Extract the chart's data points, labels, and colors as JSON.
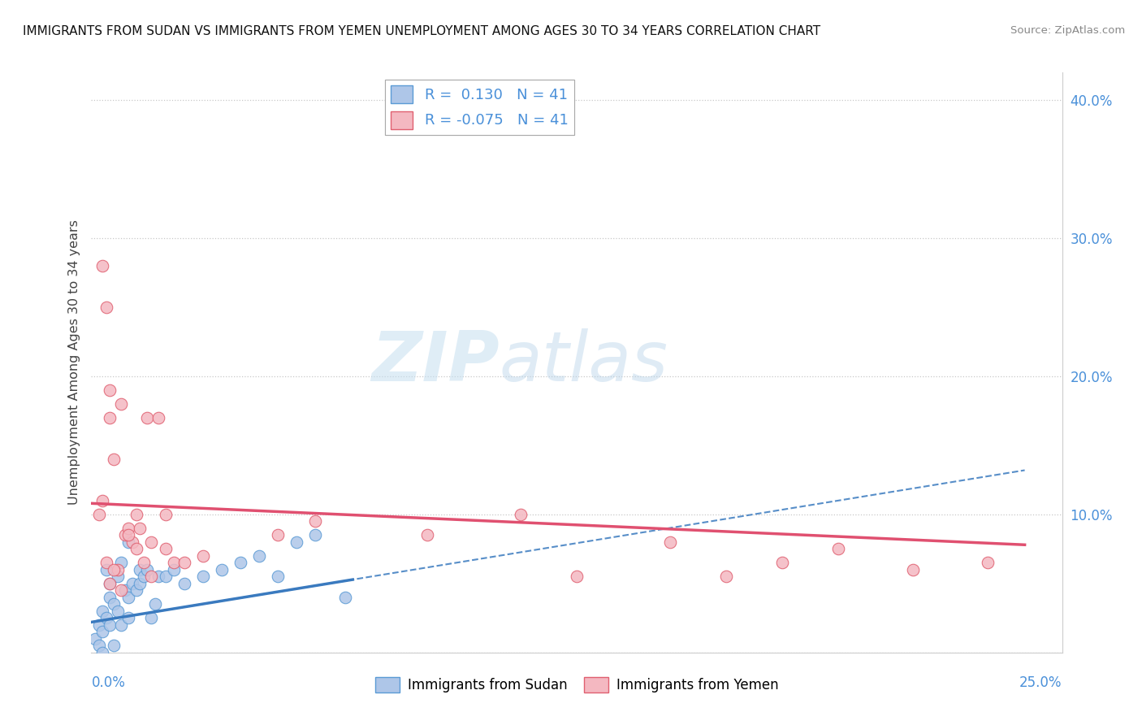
{
  "title": "IMMIGRANTS FROM SUDAN VS IMMIGRANTS FROM YEMEN UNEMPLOYMENT AMONG AGES 30 TO 34 YEARS CORRELATION CHART",
  "source": "Source: ZipAtlas.com",
  "ylabel": "Unemployment Among Ages 30 to 34 years",
  "ylim": [
    0.0,
    0.42
  ],
  "xlim": [
    0.0,
    0.26
  ],
  "sudan_color": "#aec6e8",
  "sudan_edge": "#5b9bd5",
  "yemen_color": "#f4b8c1",
  "yemen_edge": "#e06070",
  "sudan_R": 0.13,
  "yemen_R": -0.075,
  "N": 41,
  "sudan_line_color": "#3a7abf",
  "yemen_line_color": "#e05070",
  "watermark_zip": "ZIP",
  "watermark_atlas": "atlas",
  "background_color": "#ffffff",
  "grid_color": "#c8c8c8",
  "sudan_x": [
    0.001,
    0.002,
    0.002,
    0.003,
    0.003,
    0.003,
    0.004,
    0.004,
    0.005,
    0.005,
    0.005,
    0.006,
    0.006,
    0.007,
    0.007,
    0.008,
    0.008,
    0.009,
    0.01,
    0.01,
    0.01,
    0.011,
    0.012,
    0.013,
    0.013,
    0.014,
    0.015,
    0.016,
    0.017,
    0.018,
    0.02,
    0.022,
    0.025,
    0.03,
    0.035,
    0.04,
    0.045,
    0.05,
    0.055,
    0.06,
    0.068
  ],
  "sudan_y": [
    0.01,
    0.005,
    0.02,
    0.03,
    0.015,
    0.0,
    0.025,
    0.06,
    0.02,
    0.04,
    0.05,
    0.005,
    0.035,
    0.03,
    0.055,
    0.065,
    0.02,
    0.045,
    0.04,
    0.08,
    0.025,
    0.05,
    0.045,
    0.05,
    0.06,
    0.055,
    0.06,
    0.025,
    0.035,
    0.055,
    0.055,
    0.06,
    0.05,
    0.055,
    0.06,
    0.065,
    0.07,
    0.055,
    0.08,
    0.085,
    0.04
  ],
  "yemen_x": [
    0.002,
    0.003,
    0.003,
    0.004,
    0.005,
    0.005,
    0.005,
    0.006,
    0.007,
    0.008,
    0.009,
    0.01,
    0.011,
    0.012,
    0.013,
    0.015,
    0.016,
    0.018,
    0.02,
    0.022,
    0.004,
    0.006,
    0.008,
    0.01,
    0.012,
    0.014,
    0.016,
    0.02,
    0.025,
    0.03,
    0.05,
    0.06,
    0.09,
    0.115,
    0.13,
    0.155,
    0.17,
    0.185,
    0.2,
    0.22,
    0.24
  ],
  "yemen_y": [
    0.1,
    0.11,
    0.28,
    0.25,
    0.19,
    0.17,
    0.05,
    0.14,
    0.06,
    0.18,
    0.085,
    0.09,
    0.08,
    0.1,
    0.09,
    0.17,
    0.08,
    0.17,
    0.1,
    0.065,
    0.065,
    0.06,
    0.045,
    0.085,
    0.075,
    0.065,
    0.055,
    0.075,
    0.065,
    0.07,
    0.085,
    0.095,
    0.085,
    0.1,
    0.055,
    0.08,
    0.055,
    0.065,
    0.075,
    0.06,
    0.065
  ]
}
